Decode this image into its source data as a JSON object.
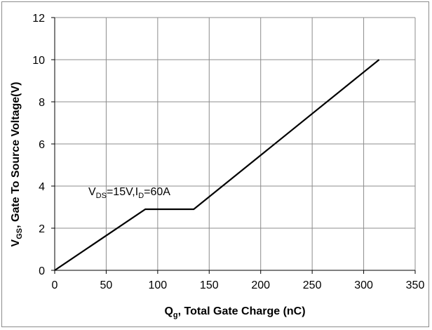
{
  "chart_data": {
    "type": "line",
    "xlabel": {
      "main": "Q",
      "sub": "g",
      "rest": ", Total Gate Charge (nC)"
    },
    "ylabel": {
      "main": "V",
      "sub": "GS",
      "rest": ",  Gate To  Source Voltage(V)"
    },
    "annotation": {
      "p1": "V",
      "s1": "DS",
      "p2": "=15V,I",
      "s2": "D",
      "p3": "=60A"
    },
    "xlim": [
      0,
      350
    ],
    "ylim": [
      0,
      12
    ],
    "x_ticks": [
      0,
      50,
      100,
      150,
      200,
      250,
      300,
      350
    ],
    "y_ticks": [
      0,
      2,
      4,
      6,
      8,
      10,
      12
    ],
    "grid": true,
    "series": [
      {
        "x": [
          0,
          88,
          135,
          315
        ],
        "y": [
          0,
          2.9,
          2.9,
          10
        ],
        "color": "#000000"
      }
    ],
    "colors": {
      "grid": "#8c8c8c",
      "axis": "#000000",
      "line": "#000000"
    }
  }
}
